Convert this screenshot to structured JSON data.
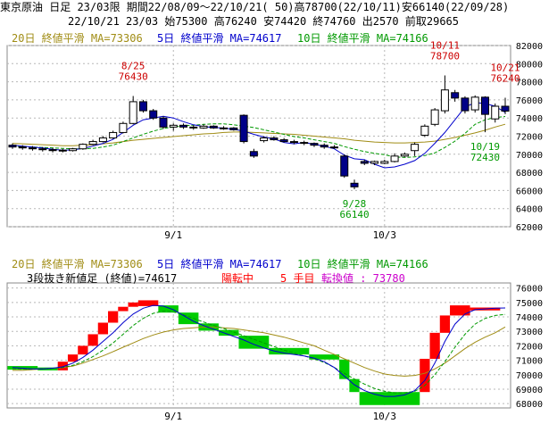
{
  "header": {
    "line1": "東京原油 日足 23/03限 期間22/08/09～22/10/21( 50)高78700(22/10/11)安66140(22/09/28)",
    "line2": "22/10/21 23/03 始75300 高76240 安74420 終74760 出2570 前取29665"
  },
  "colors": {
    "header_bg": "#ffffff",
    "ma20": "#a08c14",
    "ma5": "#0000cc",
    "ma10": "#009900",
    "candle_up_body": "#ffffff",
    "candle_down_body": "#000088",
    "renko_up": "#ff0000",
    "renko_down": "#00cc00",
    "annot_high": "#cc0000",
    "annot_low": "#009900",
    "info_black": "#000000",
    "info_red": "#ff0000",
    "info_magenta": "#cc00cc"
  },
  "chart_data": [
    {
      "type": "candlestick",
      "legend": {
        "ma20": "20日 終値平滑 MA=73306",
        "ma5": "5日 終値平滑 MA=74617",
        "ma10": "10日 終値平滑 MA=74166"
      },
      "ylim": [
        62000,
        82000
      ],
      "y_ticks": [
        62000,
        64000,
        66000,
        68000,
        70000,
        72000,
        74000,
        76000,
        78000,
        80000,
        82000
      ],
      "y_tick_labels": [
        "62000",
        "64000",
        "66000",
        "68000",
        "70000",
        "72000",
        "74000",
        "76000",
        "78000",
        "80000",
        "82000"
      ],
      "x_tick_labels": [
        {
          "label": "9/1",
          "index": 16
        },
        {
          "label": "10/3",
          "index": 37
        }
      ],
      "grid": true,
      "annotations": [
        {
          "date": "8/25",
          "value": "76430",
          "index": 12,
          "kind": "high"
        },
        {
          "date": "9/28",
          "value": "66140",
          "index": 34,
          "kind": "low"
        },
        {
          "date": "10/11",
          "value": "78700",
          "index": 43,
          "kind": "high"
        },
        {
          "date": "10/19",
          "value": "72430",
          "index": 47,
          "kind": "low"
        },
        {
          "date": "10/21",
          "value": "76240",
          "index": 49,
          "kind": "high"
        }
      ],
      "ohlc": [
        [
          71000,
          71200,
          70600,
          70800
        ],
        [
          70800,
          71000,
          70500,
          70700
        ],
        [
          70700,
          70900,
          70400,
          70600
        ],
        [
          70600,
          70800,
          70300,
          70500
        ],
        [
          70500,
          70700,
          70200,
          70450
        ],
        [
          70450,
          70600,
          70200,
          70400
        ],
        [
          70400,
          70700,
          70300,
          70600
        ],
        [
          70600,
          71200,
          70500,
          71100
        ],
        [
          71100,
          71600,
          71000,
          71400
        ],
        [
          71400,
          72000,
          71300,
          71800
        ],
        [
          71800,
          72600,
          71700,
          72400
        ],
        [
          72400,
          73600,
          72300,
          73400
        ],
        [
          73400,
          76430,
          73300,
          75800
        ],
        [
          75800,
          76000,
          74600,
          74800
        ],
        [
          74800,
          75000,
          73800,
          74000
        ],
        [
          74000,
          74200,
          72800,
          73000
        ],
        [
          73000,
          73400,
          72600,
          73200
        ],
        [
          73200,
          73400,
          72800,
          73000
        ],
        [
          73000,
          73200,
          72700,
          72900
        ],
        [
          72900,
          73300,
          72800,
          73100
        ],
        [
          73100,
          73200,
          72800,
          72900
        ],
        [
          72900,
          73100,
          72700,
          72900
        ],
        [
          72900,
          73000,
          72600,
          72700
        ],
        [
          74300,
          74400,
          71200,
          71400
        ],
        [
          70300,
          70600,
          69600,
          69800
        ],
        [
          71500,
          72000,
          71300,
          71800
        ],
        [
          71800,
          72000,
          71500,
          71600
        ],
        [
          71600,
          71800,
          71300,
          71400
        ],
        [
          71400,
          71600,
          71100,
          71300
        ],
        [
          71300,
          71500,
          71000,
          71200
        ],
        [
          71200,
          71300,
          70800,
          71000
        ],
        [
          71000,
          71200,
          70600,
          70800
        ],
        [
          70800,
          71000,
          70600,
          70800
        ],
        [
          69800,
          70000,
          67400,
          67600
        ],
        [
          66800,
          67200,
          66140,
          66400
        ],
        [
          69200,
          69400,
          68800,
          69000
        ],
        [
          69000,
          69300,
          68800,
          69200
        ],
        [
          69000,
          69400,
          68900,
          69200
        ],
        [
          69200,
          70100,
          69100,
          69800
        ],
        [
          69800,
          70200,
          69700,
          70000
        ],
        [
          70400,
          71300,
          69800,
          71100
        ],
        [
          72100,
          73300,
          71900,
          73100
        ],
        [
          73300,
          75100,
          73100,
          74900
        ],
        [
          74800,
          78700,
          74500,
          77100
        ],
        [
          76800,
          77100,
          75800,
          76200
        ],
        [
          76200,
          76400,
          74500,
          74800
        ],
        [
          74900,
          76500,
          74600,
          76300
        ],
        [
          76300,
          76400,
          72430,
          74400
        ],
        [
          73900,
          75600,
          73500,
          75300
        ],
        [
          75300,
          76240,
          74420,
          74760
        ]
      ],
      "ma20_values": [
        71200,
        71150,
        71100,
        71050,
        71000,
        70950,
        70950,
        71000,
        71050,
        71150,
        71250,
        71400,
        71550,
        71650,
        71750,
        71850,
        71950,
        72050,
        72150,
        72250,
        72300,
        72400,
        72450,
        72450,
        72400,
        72350,
        72300,
        72250,
        72200,
        72100,
        72000,
        71900,
        71800,
        71700,
        71550,
        71450,
        71350,
        71300,
        71250,
        71250,
        71300,
        71350,
        71450,
        71650,
        71850,
        72100,
        72350,
        72650,
        73000,
        73306
      ],
      "ma5_values": [
        71000,
        70900,
        70800,
        70700,
        70550,
        70450,
        70480,
        70650,
        70900,
        71200,
        71650,
        72400,
        73200,
        73800,
        74000,
        74200,
        74000,
        73600,
        73250,
        73050,
        72950,
        72900,
        72750,
        72550,
        72200,
        71900,
        71700,
        71300,
        71150,
        71300,
        71100,
        70900,
        70600,
        69900,
        69500,
        69400,
        68900,
        68500,
        68600,
        68900,
        69300,
        70100,
        71200,
        72400,
        73800,
        75200,
        75700,
        75600,
        75300,
        74617
      ],
      "ma10_values": [
        70900,
        70850,
        70800,
        70750,
        70700,
        70650,
        70600,
        70600,
        70650,
        70800,
        71000,
        71400,
        71800,
        72200,
        72550,
        72850,
        73000,
        73150,
        73200,
        73300,
        73350,
        73350,
        73250,
        73100,
        72950,
        72700,
        72450,
        72200,
        71950,
        71800,
        71600,
        71400,
        71200,
        70850,
        70550,
        70300,
        70100,
        69950,
        69700,
        69650,
        69700,
        69850,
        70150,
        70750,
        71450,
        72300,
        73300,
        73800,
        74050,
        74166
      ]
    },
    {
      "type": "renko",
      "legend": {
        "ma20": "20日 終値平滑 MA=73306",
        "ma5": "5日 終値平滑 MA=74617",
        "ma10": "10日 終値平滑 MA=74166"
      },
      "info": {
        "part1": "3段抜き新値足 (終値)=74617",
        "part2": "陽転中",
        "part3": "5 手目",
        "part4": "転換値 : 73780"
      },
      "ylim": [
        67700,
        76350
      ],
      "y_ticks": [
        68000,
        69000,
        70000,
        71000,
        72000,
        73000,
        74000,
        75000,
        76000
      ],
      "y_tick_labels": [
        "68000",
        "69000",
        "70000",
        "71000",
        "72000",
        "73000",
        "74000",
        "75000",
        "76000"
      ],
      "x_tick_labels": [
        {
          "label": "9/1",
          "index": 16
        },
        {
          "label": "10/3",
          "index": 37
        }
      ],
      "grid": true,
      "bricks": [
        {
          "from": 0,
          "to": 3,
          "low": 70350,
          "high": 70600,
          "dir": "down"
        },
        {
          "from": 3,
          "to": 5,
          "low": 70300,
          "high": 70500,
          "dir": "down"
        },
        {
          "from": 5,
          "to": 6,
          "low": 70300,
          "high": 70900,
          "dir": "up"
        },
        {
          "from": 6,
          "to": 7,
          "low": 70900,
          "high": 71400,
          "dir": "up"
        },
        {
          "from": 7,
          "to": 8,
          "low": 71400,
          "high": 72000,
          "dir": "up"
        },
        {
          "from": 8,
          "to": 9,
          "low": 72000,
          "high": 72800,
          "dir": "up"
        },
        {
          "from": 9,
          "to": 10,
          "low": 72800,
          "high": 73600,
          "dir": "up"
        },
        {
          "from": 10,
          "to": 11,
          "low": 73600,
          "high": 74400,
          "dir": "up"
        },
        {
          "from": 11,
          "to": 12,
          "low": 74400,
          "high": 74700,
          "dir": "up"
        },
        {
          "from": 12,
          "to": 13,
          "low": 74700,
          "high": 75000,
          "dir": "up"
        },
        {
          "from": 13,
          "to": 15,
          "low": 74750,
          "high": 75150,
          "dir": "up"
        },
        {
          "from": 15,
          "to": 17,
          "low": 74300,
          "high": 74800,
          "dir": "down"
        },
        {
          "from": 17,
          "to": 19,
          "low": 73500,
          "high": 74300,
          "dir": "down"
        },
        {
          "from": 19,
          "to": 21,
          "low": 73050,
          "high": 73550,
          "dir": "down"
        },
        {
          "from": 21,
          "to": 23,
          "low": 72700,
          "high": 73100,
          "dir": "down"
        },
        {
          "from": 23,
          "to": 26,
          "low": 71800,
          "high": 72700,
          "dir": "down"
        },
        {
          "from": 26,
          "to": 30,
          "low": 71400,
          "high": 71850,
          "dir": "down"
        },
        {
          "from": 30,
          "to": 33,
          "low": 71050,
          "high": 71400,
          "dir": "down"
        },
        {
          "from": 33,
          "to": 34,
          "low": 69700,
          "high": 71050,
          "dir": "down"
        },
        {
          "from": 34,
          "to": 35,
          "low": 68800,
          "high": 69700,
          "dir": "down"
        },
        {
          "from": 35,
          "to": 41,
          "low": 67900,
          "high": 68800,
          "dir": "down"
        },
        {
          "from": 41,
          "to": 42,
          "low": 68800,
          "high": 71100,
          "dir": "up"
        },
        {
          "from": 42,
          "to": 43,
          "low": 71100,
          "high": 72900,
          "dir": "up"
        },
        {
          "from": 43,
          "to": 44,
          "low": 72900,
          "high": 74100,
          "dir": "up"
        },
        {
          "from": 44,
          "to": 46,
          "low": 74100,
          "high": 74800,
          "dir": "up"
        },
        {
          "from": 46,
          "to": 49,
          "low": 74450,
          "high": 74650,
          "dir": "up"
        }
      ],
      "ma20_values": [
        70300,
        70300,
        70350,
        70400,
        70450,
        70500,
        70600,
        70800,
        71050,
        71300,
        71600,
        71900,
        72200,
        72500,
        72750,
        72950,
        73100,
        73200,
        73250,
        73300,
        73300,
        73250,
        73200,
        73100,
        73000,
        72900,
        72750,
        72600,
        72400,
        72200,
        72000,
        71700,
        71400,
        71100,
        70800,
        70500,
        70250,
        70050,
        69950,
        69900,
        69950,
        70100,
        70400,
        70800,
        71300,
        71800,
        72250,
        72600,
        72900,
        73306
      ],
      "ma5_values": [
        70500,
        70450,
        70400,
        70400,
        70450,
        70550,
        70800,
        71200,
        71700,
        72300,
        72900,
        73600,
        74200,
        74600,
        74800,
        74750,
        74500,
        74100,
        73700,
        73400,
        73150,
        72900,
        72650,
        72400,
        72100,
        71850,
        71650,
        71500,
        71400,
        71300,
        71150,
        70900,
        70500,
        69900,
        69300,
        68900,
        68650,
        68500,
        68500,
        68600,
        68900,
        69600,
        70800,
        72300,
        73500,
        74200,
        74500,
        74550,
        74600,
        74617
      ],
      "ma10_values": [
        70400,
        70380,
        70380,
        70400,
        70450,
        70500,
        70650,
        70900,
        71250,
        71700,
        72200,
        72800,
        73400,
        73900,
        74250,
        74400,
        74350,
        74150,
        73900,
        73650,
        73400,
        73200,
        72950,
        72700,
        72450,
        72200,
        71950,
        71700,
        71500,
        71300,
        71100,
        70850,
        70500,
        70100,
        69700,
        69350,
        69050,
        68850,
        68750,
        68750,
        68850,
        69250,
        70000,
        70900,
        71900,
        72800,
        73500,
        73900,
        74100,
        74166
      ]
    }
  ]
}
